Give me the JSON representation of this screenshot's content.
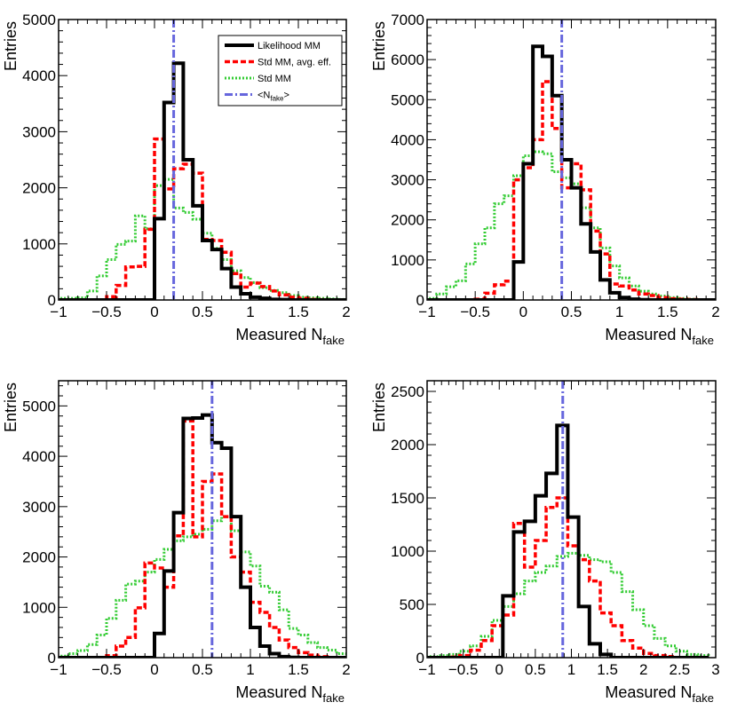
{
  "series_styles": {
    "likelihood_mm": {
      "name": "Likelihood MM",
      "color": "#000000"
    },
    "std_mm_avg_eff": {
      "name": "Std MM, avg. eff.",
      "color": "#ff0000"
    },
    "std_mm": {
      "name": "Std MM",
      "color": "#33cc33"
    },
    "mean_nfake": {
      "name": "<N",
      "sub": "fake",
      "suffix": ">",
      "color": "#6666dd"
    }
  },
  "chart_data": [
    {
      "type": "histogram",
      "title": "",
      "xlabel": {
        "main": "Measured N",
        "sub": "fake"
      },
      "ylabel": "Entries",
      "xlim": [
        -1,
        2
      ],
      "ylim": [
        0,
        5000
      ],
      "xticks": [
        -1,
        -0.5,
        0,
        0.5,
        1,
        1.5,
        2
      ],
      "xtick_labels": [
        "−1",
        "−0.5",
        "0",
        "0.5",
        "1",
        "1.5",
        "2"
      ],
      "yticks": [
        0,
        1000,
        2000,
        3000,
        4000,
        5000
      ],
      "ytick_labels": [
        "0",
        "1000",
        "2000",
        "3000",
        "4000",
        "5000"
      ],
      "bin_edges": [
        -1,
        -0.9,
        -0.8,
        -0.7,
        -0.6,
        -0.5,
        -0.4,
        -0.3,
        -0.2,
        -0.1,
        0,
        0.1,
        0.2,
        0.3,
        0.4,
        0.5,
        0.6,
        0.7,
        0.8,
        0.9,
        1,
        1.1,
        1.2,
        1.3,
        1.4,
        1.5,
        1.6,
        1.7,
        1.8,
        1.9,
        2
      ],
      "mean_line": 0.2,
      "legend": "top-right",
      "series": [
        {
          "key": "likelihood_mm",
          "values": [
            0,
            0,
            0,
            0,
            0,
            0,
            0,
            0,
            0,
            0,
            1450,
            3520,
            4220,
            2500,
            1680,
            1060,
            900,
            560,
            230,
            110,
            50,
            30,
            10,
            5,
            0,
            0,
            0,
            0,
            0,
            0
          ]
        },
        {
          "key": "std_mm_avg_eff",
          "values": [
            0,
            0,
            0,
            0,
            0,
            60,
            260,
            590,
            600,
            1260,
            2870,
            1980,
            2340,
            2420,
            2260,
            1080,
            1060,
            850,
            470,
            230,
            300,
            240,
            160,
            90,
            50,
            30,
            10,
            5,
            0,
            0
          ]
        },
        {
          "key": "std_mm",
          "values": [
            30,
            30,
            40,
            160,
            430,
            720,
            990,
            1050,
            1500,
            1270,
            2040,
            2150,
            1640,
            1560,
            1440,
            1190,
            920,
            720,
            520,
            400,
            310,
            220,
            170,
            130,
            80,
            50,
            40,
            30,
            20,
            10
          ]
        }
      ]
    },
    {
      "type": "histogram",
      "title": "",
      "xlabel": {
        "main": "Measured N",
        "sub": "fake"
      },
      "ylabel": "Entries",
      "xlim": [
        -1,
        2
      ],
      "ylim": [
        0,
        7000
      ],
      "xticks": [
        -1,
        -0.5,
        0,
        0.5,
        1,
        1.5,
        2
      ],
      "xtick_labels": [
        "−1",
        "−0.5",
        "0",
        "0.5",
        "1",
        "1.5",
        "2"
      ],
      "yticks": [
        0,
        1000,
        2000,
        3000,
        4000,
        5000,
        6000,
        7000
      ],
      "ytick_labels": [
        "0",
        "1000",
        "2000",
        "3000",
        "4000",
        "5000",
        "6000",
        "7000"
      ],
      "bin_edges": [
        -1,
        -0.9,
        -0.8,
        -0.7,
        -0.6,
        -0.5,
        -0.4,
        -0.3,
        -0.2,
        -0.1,
        0,
        0.1,
        0.2,
        0.3,
        0.4,
        0.5,
        0.6,
        0.7,
        0.8,
        0.9,
        1,
        1.1,
        1.2,
        1.3,
        1.4,
        1.5,
        1.6,
        1.7,
        1.8,
        1.9,
        2
      ],
      "mean_line": 0.4,
      "legend": "none",
      "series": [
        {
          "key": "likelihood_mm",
          "values": [
            0,
            0,
            0,
            0,
            0,
            0,
            0,
            0,
            0,
            950,
            3400,
            6330,
            6080,
            5100,
            3500,
            2800,
            1900,
            1200,
            500,
            180,
            60,
            20,
            5,
            0,
            0,
            0,
            0,
            0,
            0,
            0
          ]
        },
        {
          "key": "std_mm_avg_eff",
          "values": [
            0,
            0,
            0,
            0,
            0,
            20,
            170,
            380,
            470,
            3000,
            3300,
            4000,
            5450,
            4280,
            2800,
            3400,
            2750,
            1720,
            1150,
            400,
            350,
            250,
            150,
            110,
            60,
            30,
            20,
            10,
            0,
            0
          ]
        },
        {
          "key": "std_mm",
          "values": [
            40,
            150,
            330,
            480,
            900,
            1400,
            1800,
            2400,
            2600,
            3100,
            3600,
            3700,
            3650,
            3200,
            3050,
            2900,
            2300,
            1800,
            1300,
            850,
            550,
            350,
            220,
            150,
            100,
            60,
            40,
            20,
            10,
            5
          ]
        }
      ]
    },
    {
      "type": "histogram",
      "title": "",
      "xlabel": {
        "main": "Measured N",
        "sub": "fake"
      },
      "ylabel": "Entries",
      "xlim": [
        -1,
        2
      ],
      "ylim": [
        0,
        5500
      ],
      "xticks": [
        -1,
        -0.5,
        0,
        0.5,
        1,
        1.5,
        2
      ],
      "xtick_labels": [
        "−1",
        "−0.5",
        "0",
        "0.5",
        "1",
        "1.5",
        "2"
      ],
      "yticks": [
        0,
        1000,
        2000,
        3000,
        4000,
        5000
      ],
      "ytick_labels": [
        "0",
        "1000",
        "2000",
        "3000",
        "4000",
        "5000"
      ],
      "bin_edges": [
        -1,
        -0.9,
        -0.8,
        -0.7,
        -0.6,
        -0.5,
        -0.4,
        -0.3,
        -0.2,
        -0.1,
        0,
        0.1,
        0.2,
        0.3,
        0.4,
        0.5,
        0.6,
        0.7,
        0.8,
        0.9,
        1,
        1.1,
        1.2,
        1.3,
        1.4,
        1.5,
        1.6,
        1.7,
        1.8,
        1.9,
        2
      ],
      "mean_line": 0.6,
      "legend": "none",
      "series": [
        {
          "key": "likelihood_mm",
          "values": [
            0,
            0,
            0,
            0,
            0,
            0,
            0,
            0,
            0,
            0,
            480,
            1720,
            2880,
            4750,
            4760,
            4820,
            4270,
            4160,
            2800,
            1400,
            600,
            230,
            80,
            20,
            5,
            0,
            0,
            0,
            0,
            0
          ]
        },
        {
          "key": "std_mm_avg_eff",
          "values": [
            0,
            0,
            0,
            0,
            0,
            40,
            230,
            400,
            990,
            1880,
            1780,
            1400,
            2420,
            4700,
            2400,
            3500,
            3650,
            2800,
            2000,
            1700,
            1100,
            900,
            600,
            350,
            200,
            100,
            50,
            20,
            0,
            0
          ]
        },
        {
          "key": "std_mm",
          "values": [
            30,
            80,
            140,
            260,
            450,
            780,
            1140,
            1460,
            1520,
            1700,
            1950,
            2150,
            2320,
            2400,
            2450,
            2550,
            2720,
            2800,
            2520,
            2100,
            1820,
            1420,
            1300,
            950,
            580,
            450,
            300,
            200,
            150,
            80
          ]
        }
      ]
    },
    {
      "type": "histogram",
      "title": "",
      "xlabel": {
        "main": "Measured N",
        "sub": "fake"
      },
      "ylabel": "Entries",
      "xlim": [
        -1,
        3
      ],
      "ylim": [
        0,
        2600
      ],
      "xticks": [
        -1,
        -0.5,
        0,
        0.5,
        1,
        1.5,
        2,
        2.5,
        3
      ],
      "xtick_labels": [
        "−1",
        "−0.5",
        "0",
        "0.5",
        "1",
        "1.5",
        "2",
        "2.5",
        "3"
      ],
      "yticks": [
        0,
        500,
        1000,
        1500,
        2000,
        2500
      ],
      "ytick_labels": [
        "0",
        "500",
        "1000",
        "1500",
        "2000",
        "2500"
      ],
      "bin_edges": [
        -1,
        -0.85,
        -0.7,
        -0.55,
        -0.4,
        -0.25,
        -0.1,
        0.05,
        0.2,
        0.35,
        0.5,
        0.65,
        0.8,
        0.95,
        1.1,
        1.25,
        1.4,
        1.55,
        1.7,
        1.85,
        2,
        2.15,
        2.3,
        2.45,
        2.6,
        2.75,
        2.9
      ],
      "mean_line": 0.88,
      "legend": "none",
      "series": [
        {
          "key": "likelihood_mm",
          "values": [
            0,
            0,
            0,
            0,
            0,
            0,
            0,
            580,
            1180,
            1280,
            1520,
            1730,
            2180,
            1320,
            480,
            130,
            30,
            0,
            0,
            0,
            0,
            0,
            0,
            0,
            0,
            0
          ]
        },
        {
          "key": "std_mm_avg_eff",
          "values": [
            0,
            0,
            5,
            20,
            70,
            160,
            300,
            400,
            1260,
            850,
            1100,
            1410,
            1500,
            1050,
            920,
            720,
            420,
            300,
            160,
            90,
            40,
            20,
            10,
            0,
            0,
            0
          ]
        },
        {
          "key": "std_mm",
          "values": [
            10,
            20,
            30,
            60,
            110,
            200,
            350,
            480,
            600,
            720,
            800,
            860,
            950,
            980,
            960,
            920,
            900,
            800,
            620,
            450,
            300,
            180,
            110,
            60,
            30,
            20
          ]
        }
      ]
    }
  ]
}
